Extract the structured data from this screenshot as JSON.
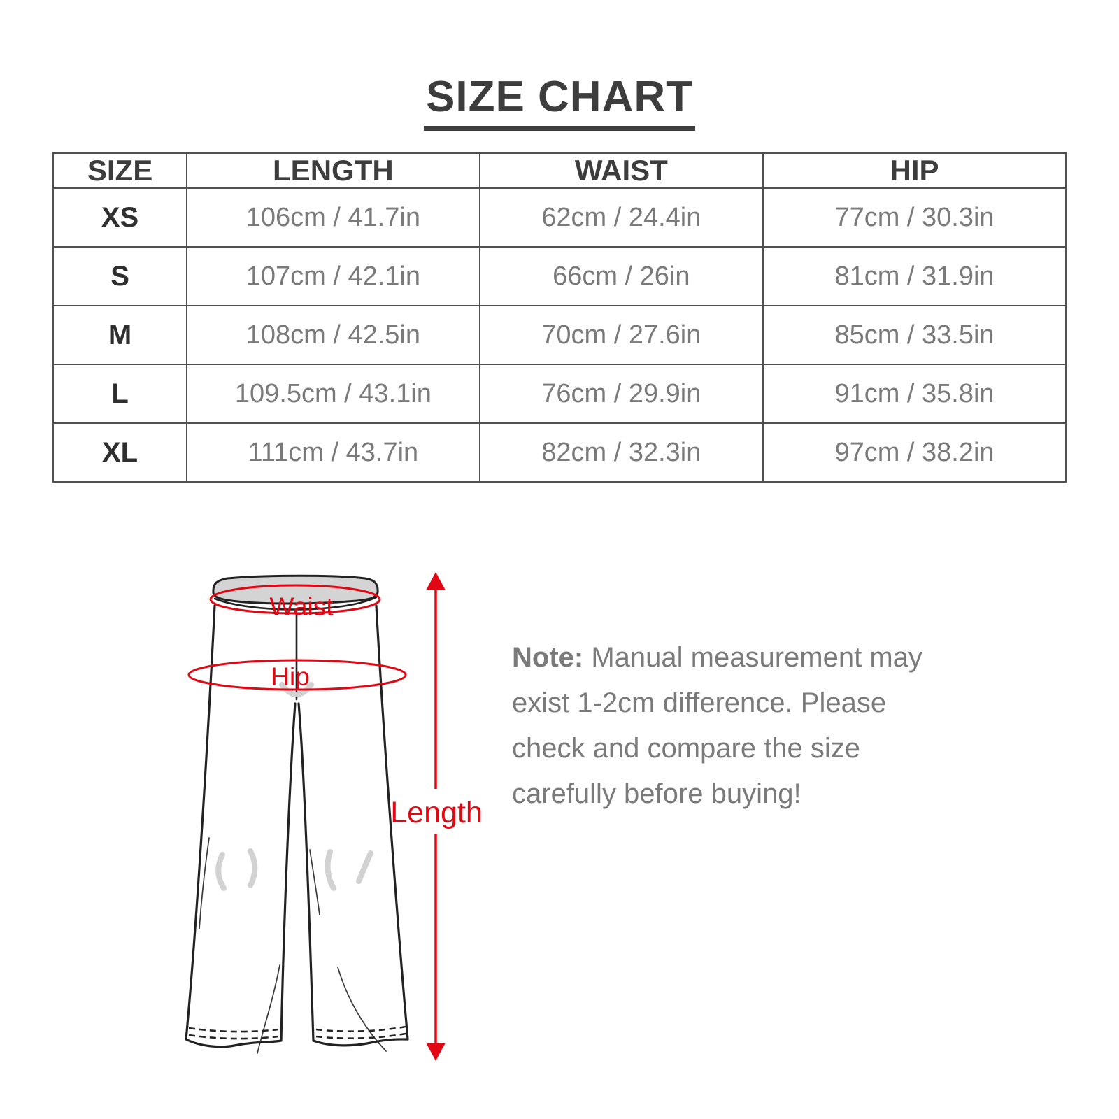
{
  "title": "SIZE CHART",
  "table": {
    "columns": [
      "SIZE",
      "LENGTH",
      "WAIST",
      "HIP"
    ],
    "rows": [
      {
        "size": "XS",
        "length": "106cm / 41.7in",
        "waist": "62cm / 24.4in",
        "hip": "77cm / 30.3in"
      },
      {
        "size": "S",
        "length": "107cm / 42.1in",
        "waist": "66cm / 26in",
        "hip": "81cm / 31.9in"
      },
      {
        "size": "M",
        "length": "108cm / 42.5in",
        "waist": "70cm / 27.6in",
        "hip": "85cm / 33.5in"
      },
      {
        "size": "L",
        "length": "109.5cm / 43.1in",
        "waist": "76cm / 29.9in",
        "hip": "91cm / 35.8in"
      },
      {
        "size": "XL",
        "length": "111cm / 43.7in",
        "waist": "82cm / 32.3in",
        "hip": "97cm / 38.2in"
      }
    ]
  },
  "diagram": {
    "waist_label": "Waist",
    "hip_label": "Hip",
    "length_label": "Length"
  },
  "note": {
    "prefix": "Note:",
    "lines": [
      "Manual measurement may",
      "exist 1-2cm difference. Please",
      "check and compare the size",
      "carefully before buying!"
    ]
  },
  "colors": {
    "accent": "#e30613",
    "heading_text": "#3d3d3d",
    "table_border": "#505050",
    "table_text": "#7a7a7a",
    "size_text": "#2f2f2f",
    "note_text": "#7a7a7a",
    "sketch_line": "#222222",
    "waistband_fill": "#d4d4d4",
    "shadow_gray": "#d2d2d2"
  }
}
